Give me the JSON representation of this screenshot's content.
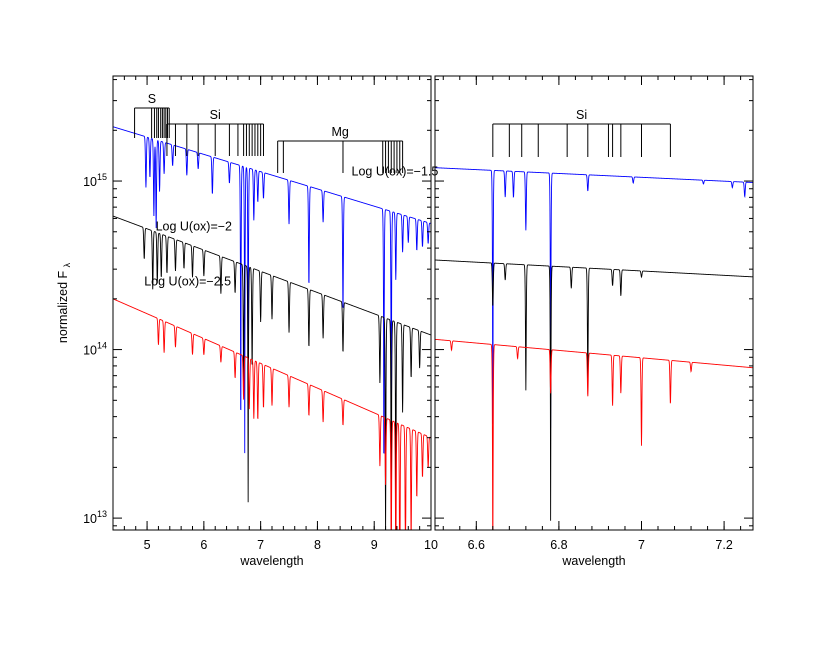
{
  "chart_data": [
    {
      "type": "line",
      "panel": "left",
      "xlabel": "wavelength",
      "ylabel": "normalized F",
      "ylabel_sub": "λ",
      "xlim": [
        4.4,
        10.0
      ],
      "ylim": [
        8500000000000.0,
        4200000000000000.0
      ],
      "yscale": "log",
      "x_ticks": [
        5,
        6,
        7,
        8,
        9,
        10
      ],
      "y_ticks": [
        {
          "value": 10000000000000.0,
          "base": "10",
          "exp": "13"
        },
        {
          "value": 100000000000000.0,
          "base": "10",
          "exp": "14"
        },
        {
          "value": 1000000000000000.0,
          "base": "10",
          "exp": "15"
        }
      ],
      "series": [
        {
          "name": "Log U(ox)=−1.5",
          "color": "#0000ff",
          "continuum": [
            [
              4.4,
              2100000000000000.0
            ],
            [
              10.0,
              560000000000000.0
            ]
          ],
          "absorption_lines": [
            [
              4.98,
              0.5
            ],
            [
              5.05,
              0.42
            ],
            [
              5.12,
              0.65
            ],
            [
              5.16,
              0.7
            ],
            [
              5.22,
              0.5
            ],
            [
              5.3,
              0.35
            ],
            [
              5.45,
              0.25
            ],
            [
              5.7,
              0.3
            ],
            [
              5.9,
              0.2
            ],
            [
              6.15,
              0.4
            ],
            [
              6.45,
              0.25
            ],
            [
              6.65,
              0.99
            ],
            [
              6.72,
              0.98
            ],
            [
              6.78,
              0.95
            ],
            [
              6.88,
              0.5
            ],
            [
              6.95,
              0.35
            ],
            [
              7.05,
              0.3
            ],
            [
              7.5,
              0.45
            ],
            [
              7.85,
              0.75
            ],
            [
              8.1,
              0.35
            ],
            [
              8.45,
              0.8
            ],
            [
              9.17,
              0.99
            ],
            [
              9.3,
              0.95
            ],
            [
              9.38,
              0.6
            ],
            [
              9.5,
              0.4
            ],
            [
              9.6,
              0.3
            ],
            [
              9.75,
              0.35
            ],
            [
              9.85,
              0.3
            ],
            [
              9.95,
              0.25
            ]
          ]
        },
        {
          "name": "Log U(ox)=−2",
          "color": "#000000",
          "continuum": [
            [
              4.4,
              620000000000000.0
            ],
            [
              10.0,
              122000000000000.0
            ]
          ],
          "absorption_lines": [
            [
              4.95,
              0.35
            ],
            [
              5.1,
              0.55
            ],
            [
              5.18,
              0.5
            ],
            [
              5.25,
              0.45
            ],
            [
              5.35,
              0.4
            ],
            [
              5.5,
              0.35
            ],
            [
              5.65,
              0.3
            ],
            [
              5.8,
              0.35
            ],
            [
              6.0,
              0.3
            ],
            [
              6.3,
              0.4
            ],
            [
              6.55,
              0.35
            ],
            [
              6.7,
              0.8
            ],
            [
              6.78,
              0.96
            ],
            [
              6.85,
              0.75
            ],
            [
              7.0,
              0.5
            ],
            [
              7.2,
              0.45
            ],
            [
              7.5,
              0.5
            ],
            [
              7.85,
              0.55
            ],
            [
              8.1,
              0.45
            ],
            [
              8.45,
              0.5
            ],
            [
              9.1,
              0.6
            ],
            [
              9.2,
              0.99
            ],
            [
              9.3,
              0.99
            ],
            [
              9.38,
              0.95
            ],
            [
              9.5,
              0.7
            ],
            [
              9.65,
              0.5
            ],
            [
              9.8,
              0.4
            ]
          ]
        },
        {
          "name": "Log U(ox)=−2.5",
          "color": "#ff0000",
          "continuum": [
            [
              4.4,
              200000000000000.0
            ],
            [
              10.0,
              30000000000000.0
            ]
          ],
          "absorption_lines": [
            [
              5.2,
              0.3
            ],
            [
              5.3,
              0.35
            ],
            [
              5.5,
              0.25
            ],
            [
              5.8,
              0.25
            ],
            [
              6.0,
              0.2
            ],
            [
              6.3,
              0.2
            ],
            [
              6.55,
              0.3
            ],
            [
              6.7,
              0.45
            ],
            [
              6.8,
              0.5
            ],
            [
              6.88,
              0.55
            ],
            [
              6.95,
              0.55
            ],
            [
              7.05,
              0.45
            ],
            [
              7.2,
              0.4
            ],
            [
              7.5,
              0.35
            ],
            [
              7.85,
              0.35
            ],
            [
              8.1,
              0.35
            ],
            [
              8.45,
              0.3
            ],
            [
              9.1,
              0.5
            ],
            [
              9.2,
              0.6
            ],
            [
              9.3,
              0.85
            ],
            [
              9.38,
              0.95
            ],
            [
              9.45,
              0.99
            ],
            [
              9.55,
              0.9
            ],
            [
              9.65,
              0.8
            ],
            [
              9.75,
              0.6
            ],
            [
              9.85,
              0.45
            ],
            [
              9.95,
              0.35
            ]
          ]
        }
      ],
      "annotations": [
        {
          "text": "Log U(ox)=−1.5",
          "x": 8.6,
          "y": 1080000000000000.0
        },
        {
          "text": "Log U(ox)=−2",
          "x": 5.15,
          "y": 510000000000000.0
        },
        {
          "text": "Log U(ox)=−2.5",
          "x": 4.95,
          "y": 240000000000000.0
        }
      ],
      "line_groups": [
        {
          "label": "S",
          "lines": [
            4.78,
            5.08,
            5.13,
            5.17,
            5.2,
            5.24,
            5.27,
            5.3,
            5.33,
            5.36,
            5.39
          ]
        },
        {
          "label": "Si",
          "lines": [
            5.35,
            5.5,
            5.7,
            5.9,
            6.2,
            6.45,
            6.6,
            6.7,
            6.75,
            6.8,
            6.85,
            6.9,
            6.95,
            7.0,
            7.05
          ]
        },
        {
          "label": "Mg",
          "lines": [
            7.3,
            7.4,
            8.45,
            9.15,
            9.2,
            9.25,
            9.3,
            9.35,
            9.4,
            9.45,
            9.5
          ]
        }
      ]
    },
    {
      "type": "line",
      "panel": "right",
      "xlabel": "wavelength",
      "xlim": [
        6.5,
        7.27
      ],
      "ylim": [
        8500000000000.0,
        4200000000000000.0
      ],
      "yscale": "log",
      "x_ticks": [
        6.6,
        6.8,
        7.0,
        7.2
      ],
      "x_tick_labels": [
        "6.6",
        "6.8",
        "7",
        "7.2"
      ],
      "series": [
        {
          "name": "Log U(ox)=−1.5",
          "color": "#0000ff",
          "continuum": [
            [
              6.5,
              1200000000000000.0
            ],
            [
              7.27,
              980000000000000.0
            ]
          ],
          "absorption_lines": [
            [
              6.64,
              0.99
            ],
            [
              6.67,
              0.3
            ],
            [
              6.69,
              0.3
            ],
            [
              6.72,
              0.55
            ],
            [
              6.78,
              0.97
            ],
            [
              6.87,
              0.2
            ],
            [
              6.98,
              0.08
            ],
            [
              7.15,
              0.05
            ],
            [
              7.22,
              0.08
            ],
            [
              7.25,
              0.18
            ]
          ]
        },
        {
          "name": "Log U(ox)=−2",
          "color": "#000000",
          "continuum": [
            [
              6.5,
              340000000000000.0
            ],
            [
              7.27,
              270000000000000.0
            ]
          ],
          "absorption_lines": [
            [
              6.64,
              0.45
            ],
            [
              6.67,
              0.2
            ],
            [
              6.72,
              0.82
            ],
            [
              6.78,
              0.97
            ],
            [
              6.83,
              0.25
            ],
            [
              6.87,
              0.8
            ],
            [
              6.93,
              0.2
            ],
            [
              6.95,
              0.3
            ],
            [
              7.0,
              0.08
            ]
          ]
        },
        {
          "name": "Log U(ox)=−2.5",
          "color": "#ff0000",
          "continuum": [
            [
              6.5,
              115000000000000.0
            ],
            [
              7.27,
              78000000000000.0
            ]
          ],
          "absorption_lines": [
            [
              6.54,
              0.12
            ],
            [
              6.64,
              0.99
            ],
            [
              6.7,
              0.15
            ],
            [
              6.78,
              0.45
            ],
            [
              6.87,
              0.45
            ],
            [
              6.93,
              0.5
            ],
            [
              6.95,
              0.4
            ],
            [
              7.0,
              0.7
            ],
            [
              7.07,
              0.45
            ],
            [
              7.12,
              0.12
            ]
          ]
        }
      ],
      "line_groups": [
        {
          "label": "Si",
          "lines": [
            6.64,
            6.68,
            6.71,
            6.75,
            6.82,
            6.87,
            6.92,
            6.93,
            6.95,
            7.0,
            7.07
          ]
        }
      ]
    }
  ]
}
